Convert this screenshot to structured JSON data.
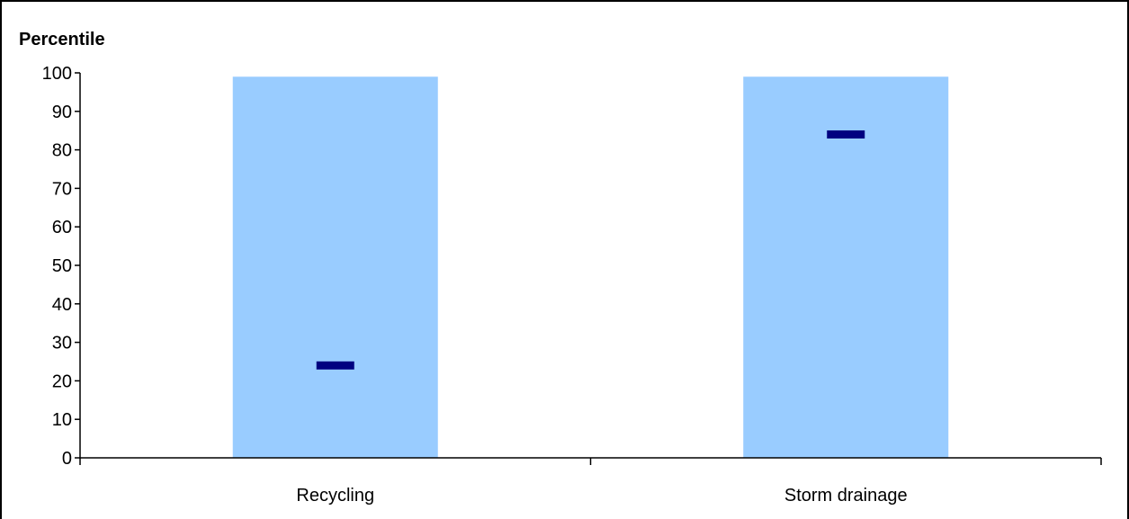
{
  "chart_data": {
    "type": "bar",
    "title": "",
    "xlabel": "",
    "ylabel": "Percentile",
    "ylim": [
      0,
      100
    ],
    "yticks": [
      0,
      10,
      20,
      30,
      40,
      50,
      60,
      70,
      80,
      90,
      100
    ],
    "categories": [
      "Recycling",
      "Storm drainage"
    ],
    "series": [
      {
        "values": [
          99,
          99
        ],
        "color": "#99ccff"
      },
      {
        "values": [
          24,
          84
        ],
        "color": "#000080",
        "marker": "dash"
      }
    ],
    "grid": false,
    "legend": "none"
  }
}
